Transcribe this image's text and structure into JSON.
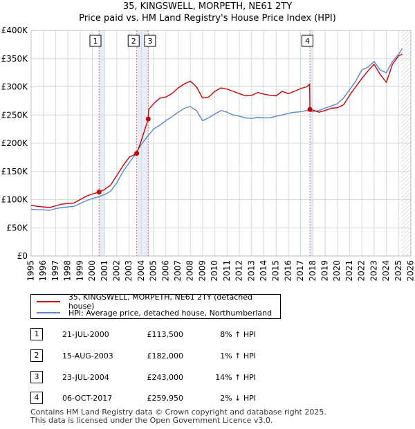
{
  "header": {
    "title": "35, KINGSWELL, MORPETH, NE61 2TY",
    "subtitle": "Price paid vs. HM Land Registry's House Price Index (HPI)"
  },
  "legend": {
    "property": "35, KINGSWELL, MORPETH, NE61 2TY (detached house)",
    "hpi": "HPI: Average price, detached house, Northumberland"
  },
  "colors": {
    "property": "#cc0000",
    "hpi": "#5588cc",
    "shade": "#e8eef7",
    "vline": "#e06070",
    "grid": "#d8d8d8"
  },
  "chart_data": {
    "type": "line",
    "title": "35, KINGSWELL, MORPETH, NE61 2TY",
    "subtitle": "Price paid vs. HM Land Registry's House Price Index (HPI)",
    "xlim": [
      1995,
      2026
    ],
    "ylim": [
      0,
      400000
    ],
    "y_ticks": [
      0,
      50000,
      100000,
      150000,
      200000,
      250000,
      300000,
      350000,
      400000
    ],
    "y_tick_labels": [
      "£0",
      "£50K",
      "£100K",
      "£150K",
      "£200K",
      "£250K",
      "£300K",
      "£350K",
      "£400K"
    ],
    "x_ticks": [
      1995,
      1996,
      1997,
      1998,
      1999,
      2000,
      2001,
      2002,
      2003,
      2004,
      2005,
      2006,
      2007,
      2008,
      2009,
      2010,
      2011,
      2012,
      2013,
      2014,
      2015,
      2016,
      2017,
      2018,
      2019,
      2020,
      2021,
      2022,
      2023,
      2024,
      2025,
      2026
    ],
    "grid": true,
    "shaded_ranges": [
      [
        2000.55,
        2001.0
      ],
      [
        2003.62,
        2004.6
      ],
      [
        2017.76,
        2018.0
      ]
    ],
    "forecast_start": 2025.2,
    "series": [
      {
        "name": "35, KINGSWELL, MORPETH, NE61 2TY (detached house)",
        "color": "#cc0000",
        "x": [
          1995.0,
          1995.5,
          1996.0,
          1996.5,
          1997.0,
          1997.5,
          1998.0,
          1998.5,
          1999.0,
          1999.5,
          2000.0,
          2000.55,
          2001.0,
          2001.5,
          2002.0,
          2002.5,
          2003.0,
          2003.62,
          2004.0,
          2004.56,
          2004.6,
          2005.0,
          2005.5,
          2006.0,
          2006.5,
          2007.0,
          2007.5,
          2008.0,
          2008.5,
          2009.0,
          2009.5,
          2010.0,
          2010.5,
          2011.0,
          2011.5,
          2012.0,
          2012.5,
          2013.0,
          2013.5,
          2014.0,
          2014.5,
          2015.0,
          2015.5,
          2016.0,
          2016.5,
          2017.0,
          2017.5,
          2017.74,
          2017.76,
          2018.0,
          2018.5,
          2019.0,
          2019.5,
          2020.0,
          2020.5,
          2021.0,
          2021.5,
          2022.0,
          2022.5,
          2023.0,
          2023.5,
          2024.0,
          2024.5,
          2025.0,
          2025.3
        ],
        "values": [
          90000,
          88000,
          87000,
          86000,
          89000,
          92000,
          93000,
          94000,
          100000,
          106000,
          110000,
          113500,
          118000,
          126000,
          143000,
          160000,
          175000,
          182000,
          205000,
          243000,
          260000,
          270000,
          280000,
          282000,
          288000,
          298000,
          305000,
          310000,
          300000,
          280000,
          282000,
          292000,
          298000,
          296000,
          292000,
          288000,
          284000,
          285000,
          290000,
          287000,
          285000,
          284000,
          292000,
          288000,
          292000,
          297000,
          300000,
          305000,
          259950,
          259000,
          255000,
          258000,
          262000,
          263000,
          268000,
          285000,
          300000,
          315000,
          328000,
          340000,
          322000,
          308000,
          340000,
          355000,
          358000
        ]
      },
      {
        "name": "HPI: Average price, detached house, Northumberland",
        "color": "#5588cc",
        "x": [
          1995.0,
          1995.5,
          1996.0,
          1996.5,
          1997.0,
          1997.5,
          1998.0,
          1998.5,
          1999.0,
          1999.5,
          2000.0,
          2000.5,
          2001.0,
          2001.5,
          2002.0,
          2002.5,
          2003.0,
          2003.5,
          2004.0,
          2004.5,
          2005.0,
          2005.5,
          2006.0,
          2006.5,
          2007.0,
          2007.5,
          2008.0,
          2008.5,
          2009.0,
          2009.5,
          2010.0,
          2010.5,
          2011.0,
          2011.5,
          2012.0,
          2012.5,
          2013.0,
          2013.5,
          2014.0,
          2014.5,
          2015.0,
          2015.5,
          2016.0,
          2016.5,
          2017.0,
          2017.5,
          2018.0,
          2018.5,
          2019.0,
          2019.5,
          2020.0,
          2020.5,
          2021.0,
          2021.5,
          2022.0,
          2022.5,
          2023.0,
          2023.5,
          2024.0,
          2024.5,
          2025.0,
          2025.3
        ],
        "values": [
          83000,
          82000,
          82000,
          81000,
          84000,
          86000,
          87000,
          88000,
          93000,
          98000,
          102000,
          105000,
          109000,
          115000,
          130000,
          150000,
          165000,
          180000,
          198000,
          212000,
          225000,
          232000,
          240000,
          247000,
          255000,
          262000,
          265000,
          258000,
          240000,
          245000,
          252000,
          258000,
          255000,
          250000,
          248000,
          245000,
          244000,
          246000,
          245000,
          245000,
          248000,
          250000,
          253000,
          255000,
          256000,
          258000,
          256000,
          258000,
          262000,
          266000,
          270000,
          280000,
          295000,
          310000,
          330000,
          335000,
          345000,
          330000,
          325000,
          345000,
          358000,
          368000
        ]
      }
    ],
    "sales": [
      {
        "label": "1",
        "date": "21-JUL-2000",
        "x": 2000.55,
        "price": 113500,
        "price_text": "£113,500",
        "hpi": "8% ↑ HPI"
      },
      {
        "label": "2",
        "date": "15-AUG-2003",
        "x": 2003.62,
        "price": 182000,
        "price_text": "£182,000",
        "hpi": "1% ↑ HPI"
      },
      {
        "label": "3",
        "date": "23-JUL-2004",
        "x": 2004.56,
        "price": 243000,
        "price_text": "£243,000",
        "hpi": "14% ↑ HPI"
      },
      {
        "label": "4",
        "date": "06-OCT-2017",
        "x": 2017.76,
        "price": 259950,
        "price_text": "£259,950",
        "hpi": "2% ↓ HPI"
      }
    ]
  },
  "footer": {
    "line1": "Contains HM Land Registry data © Crown copyright and database right 2025.",
    "line2": "This data is licensed under the Open Government Licence v3.0."
  }
}
